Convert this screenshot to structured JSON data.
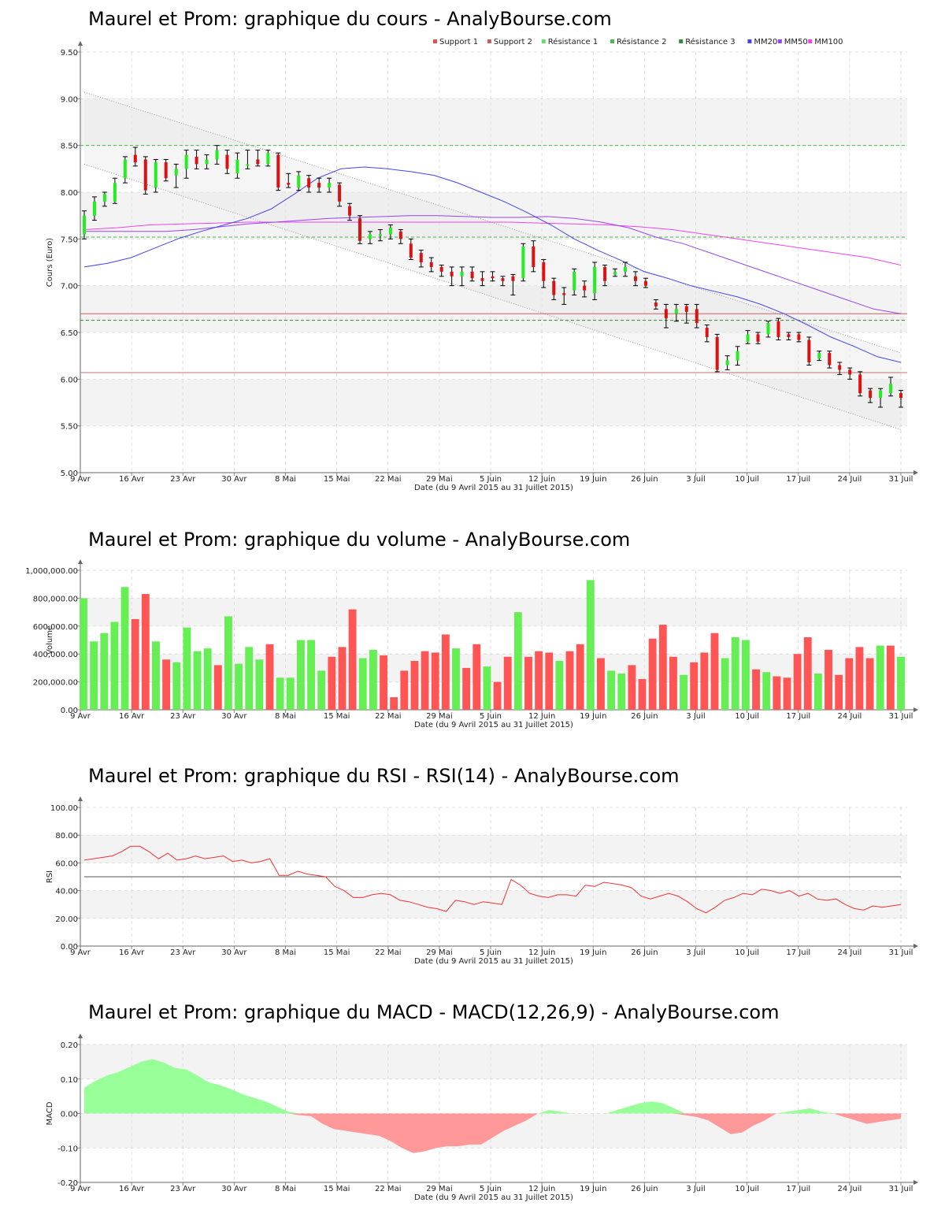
{
  "chart_data": [
    {
      "type": "candlestick",
      "title": "Maurel et Prom: graphique du cours - AnalyBourse.com",
      "xlabel": "Date (du 9 Avril 2015 au 31 Juillet 2015)",
      "ylabel": "Cours (Euro)",
      "ylim": [
        5.0,
        9.5
      ],
      "yticks": [
        "5.00",
        "5.50",
        "6.00",
        "6.50",
        "7.00",
        "7.50",
        "8.00",
        "8.50",
        "9.00",
        "9.50"
      ],
      "xticks": [
        "9 Avr",
        "16 Avr",
        "23 Avr",
        "30 Avr",
        "8 Mai",
        "15 Mai",
        "22 Mai",
        "29 Mai",
        "5 Juin",
        "12 Juin",
        "19 Juin",
        "26 Juin",
        "3 Juil",
        "10 Juil",
        "17 Juil",
        "24 Juil",
        "31 Juil"
      ],
      "legend": [
        {
          "name": "Support 1",
          "color": "#e05050"
        },
        {
          "name": "Support 2",
          "color": "#c06060"
        },
        {
          "name": "Résistance 1",
          "color": "#66dd66"
        },
        {
          "name": "Résistance 2",
          "color": "#44bb44"
        },
        {
          "name": "Résistance 3",
          "color": "#338833"
        },
        {
          "name": "MM20",
          "color": "#4444ee"
        },
        {
          "name": "MM50",
          "color": "#9944ee"
        },
        {
          "name": "MM100",
          "color": "#ee44ee"
        }
      ],
      "legend_position": "top-right",
      "grid": true,
      "levels": {
        "support1": 6.7,
        "support2": 6.07,
        "resistance1": 8.5,
        "resistance2": 7.52,
        "resistance3": 6.63
      },
      "candles": [
        [
          7.55,
          7.75,
          7.8,
          7.5
        ],
        [
          7.75,
          7.9,
          7.95,
          7.7
        ],
        [
          7.9,
          7.98,
          8.0,
          7.85
        ],
        [
          7.9,
          8.1,
          8.15,
          7.88
        ],
        [
          8.15,
          8.35,
          8.38,
          8.1
        ],
        [
          8.4,
          8.32,
          8.48,
          8.28
        ],
        [
          8.35,
          8.02,
          8.38,
          7.98
        ],
        [
          8.05,
          8.32,
          8.35,
          8.0
        ],
        [
          8.32,
          8.15,
          8.35,
          8.12
        ],
        [
          8.18,
          8.25,
          8.3,
          8.05
        ],
        [
          8.25,
          8.4,
          8.45,
          8.15
        ],
        [
          8.38,
          8.3,
          8.45,
          8.25
        ],
        [
          8.3,
          8.35,
          8.4,
          8.25
        ],
        [
          8.35,
          8.45,
          8.5,
          8.3
        ],
        [
          8.4,
          8.25,
          8.45,
          8.2
        ],
        [
          8.2,
          8.35,
          8.42,
          8.15
        ],
        [
          8.3,
          8.3,
          8.45,
          8.25
        ],
        [
          8.35,
          8.3,
          8.45,
          8.28
        ],
        [
          8.3,
          8.42,
          8.45,
          8.28
        ],
        [
          8.4,
          8.05,
          8.42,
          8.02
        ],
        [
          8.1,
          8.08,
          8.2,
          8.05
        ],
        [
          8.05,
          8.18,
          8.22,
          8.02
        ],
        [
          8.15,
          8.05,
          8.18,
          8.0
        ],
        [
          8.1,
          8.05,
          8.15,
          8.0
        ],
        [
          8.05,
          8.1,
          8.15,
          8.0
        ],
        [
          8.08,
          7.9,
          8.1,
          7.85
        ],
        [
          7.85,
          7.75,
          7.88,
          7.7
        ],
        [
          7.72,
          7.48,
          7.75,
          7.45
        ],
        [
          7.5,
          7.55,
          7.58,
          7.45
        ],
        [
          7.55,
          7.55,
          7.6,
          7.48
        ],
        [
          7.55,
          7.62,
          7.65,
          7.5
        ],
        [
          7.58,
          7.5,
          7.6,
          7.45
        ],
        [
          7.45,
          7.3,
          7.5,
          7.28
        ],
        [
          7.35,
          7.25,
          7.38,
          7.2
        ],
        [
          7.25,
          7.2,
          7.3,
          7.15
        ],
        [
          7.2,
          7.15,
          7.22,
          7.1
        ],
        [
          7.15,
          7.1,
          7.2,
          7.0
        ],
        [
          7.1,
          7.15,
          7.2,
          7.0
        ],
        [
          7.15,
          7.08,
          7.2,
          7.05
        ],
        [
          7.08,
          7.05,
          7.15,
          7.0
        ],
        [
          7.1,
          7.08,
          7.15,
          7.05
        ],
        [
          7.08,
          7.05,
          7.1,
          7.0
        ],
        [
          7.1,
          7.05,
          7.12,
          6.9
        ],
        [
          7.08,
          7.42,
          7.45,
          7.05
        ],
        [
          7.42,
          7.2,
          7.48,
          7.15
        ],
        [
          7.25,
          7.05,
          7.28,
          6.98
        ],
        [
          7.05,
          6.9,
          7.08,
          6.85
        ],
        [
          6.92,
          6.9,
          6.98,
          6.8
        ],
        [
          6.95,
          7.15,
          7.18,
          6.9
        ],
        [
          7.0,
          6.95,
          7.05,
          6.88
        ],
        [
          6.92,
          7.2,
          7.25,
          6.85
        ],
        [
          7.2,
          7.05,
          7.22,
          7.0
        ],
        [
          7.12,
          7.15,
          7.18,
          7.1
        ],
        [
          7.15,
          7.2,
          7.25,
          7.1
        ],
        [
          7.1,
          7.05,
          7.15,
          7.0
        ],
        [
          7.05,
          7.0,
          7.08,
          6.98
        ],
        [
          6.82,
          6.78,
          6.85,
          6.75
        ],
        [
          6.75,
          6.65,
          6.8,
          6.55
        ],
        [
          6.7,
          6.75,
          6.8,
          6.62
        ],
        [
          6.78,
          6.72,
          6.8,
          6.6
        ],
        [
          6.75,
          6.6,
          6.8,
          6.55
        ],
        [
          6.55,
          6.45,
          6.58,
          6.4
        ],
        [
          6.45,
          6.1,
          6.48,
          6.08
        ],
        [
          6.15,
          6.2,
          6.25,
          6.1
        ],
        [
          6.2,
          6.3,
          6.35,
          6.15
        ],
        [
          6.4,
          6.48,
          6.52,
          6.38
        ],
        [
          6.48,
          6.4,
          6.5,
          6.38
        ],
        [
          6.48,
          6.6,
          6.62,
          6.45
        ],
        [
          6.62,
          6.45,
          6.65,
          6.42
        ],
        [
          6.48,
          6.45,
          6.5,
          6.42
        ],
        [
          6.48,
          6.42,
          6.5,
          6.4
        ],
        [
          6.42,
          6.18,
          6.45,
          6.15
        ],
        [
          6.22,
          6.28,
          6.3,
          6.2
        ],
        [
          6.28,
          6.15,
          6.3,
          6.12
        ],
        [
          6.15,
          6.1,
          6.18,
          6.05
        ],
        [
          6.1,
          6.05,
          6.12,
          6.0
        ],
        [
          6.05,
          5.85,
          6.08,
          5.82
        ],
        [
          5.88,
          5.8,
          5.9,
          5.75
        ],
        [
          5.8,
          5.88,
          5.9,
          5.7
        ],
        [
          5.85,
          5.95,
          6.02,
          5.82
        ],
        [
          5.85,
          5.8,
          5.88,
          5.7
        ]
      ],
      "mm20": [
        7.2,
        7.24,
        7.3,
        7.4,
        7.5,
        7.58,
        7.65,
        7.72,
        7.82,
        7.98,
        8.15,
        8.25,
        8.27,
        8.25,
        8.22,
        8.18,
        8.1,
        8.0,
        7.9,
        7.78,
        7.65,
        7.5,
        7.38,
        7.27,
        7.15,
        7.08,
        7.0,
        6.94,
        6.88,
        6.8,
        6.7,
        6.58,
        6.45,
        6.35,
        6.24,
        6.18
      ],
      "mm50": [
        7.58,
        7.58,
        7.58,
        7.58,
        7.6,
        7.63,
        7.66,
        7.68,
        7.7,
        7.72,
        7.73,
        7.74,
        7.75,
        7.75,
        7.74,
        7.73,
        7.73,
        7.74,
        7.72,
        7.68,
        7.62,
        7.52,
        7.45,
        7.35,
        7.25,
        7.15,
        7.05,
        6.95,
        6.85,
        6.75,
        6.7
      ],
      "mm100": [
        7.6,
        7.62,
        7.65,
        7.66,
        7.67,
        7.68,
        7.68,
        7.68,
        7.68,
        7.68,
        7.68,
        7.68,
        7.68,
        7.68,
        7.67,
        7.66,
        7.65,
        7.63,
        7.6,
        7.55,
        7.5,
        7.45,
        7.4,
        7.35,
        7.3,
        7.22
      ],
      "channel_upper": [
        9.07,
        6.28
      ],
      "channel_lower": [
        8.3,
        5.46
      ]
    },
    {
      "type": "bar",
      "title": "Maurel et Prom: graphique du volume - AnalyBourse.com",
      "xlabel": "Date (du 9 Avril 2015 au 31 Juillet 2015)",
      "ylabel": "Volume",
      "ylim": [
        0,
        1000000
      ],
      "yticks": [
        "0.00",
        "200,000.00",
        "400,000.00",
        "600,000.00",
        "800,000.00",
        "1,000,000.00"
      ],
      "xticks": [
        "9 Avr",
        "16 Avr",
        "23 Avr",
        "30 Avr",
        "8 Mai",
        "15 Mai",
        "22 Mai",
        "29 Mai",
        "5 Juin",
        "12 Juin",
        "19 Juin",
        "26 Juin",
        "3 Juil",
        "10 Juil",
        "17 Juil",
        "24 Juil",
        "31 Juil"
      ],
      "up_color": "#66ee55",
      "down_color": "#ff5555",
      "values": [
        800000,
        490000,
        550000,
        630000,
        880000,
        650000,
        830000,
        490000,
        360000,
        340000,
        590000,
        420000,
        440000,
        320000,
        670000,
        330000,
        450000,
        360000,
        470000,
        230000,
        230000,
        500000,
        500000,
        280000,
        380000,
        450000,
        720000,
        370000,
        430000,
        390000,
        90000,
        280000,
        350000,
        420000,
        410000,
        540000,
        440000,
        300000,
        470000,
        310000,
        200000,
        380000,
        700000,
        380000,
        420000,
        410000,
        350000,
        420000,
        470000,
        930000,
        370000,
        280000,
        260000,
        320000,
        220000,
        510000,
        610000,
        380000,
        250000,
        340000,
        410000,
        550000,
        370000,
        520000,
        500000,
        290000,
        270000,
        240000,
        230000,
        400000,
        520000,
        260000,
        430000,
        250000,
        370000,
        450000,
        370000,
        460000,
        460000,
        380000
      ],
      "up": [
        1,
        1,
        1,
        1,
        1,
        0,
        0,
        1,
        0,
        1,
        1,
        1,
        1,
        0,
        1,
        1,
        1,
        1,
        0,
        1,
        1,
        1,
        1,
        1,
        0,
        0,
        0,
        1,
        1,
        0,
        0,
        0,
        0,
        0,
        0,
        0,
        1,
        0,
        0,
        1,
        0,
        0,
        1,
        0,
        0,
        0,
        1,
        0,
        0,
        1,
        0,
        1,
        1,
        0,
        0,
        0,
        0,
        0,
        1,
        0,
        0,
        0,
        1,
        1,
        1,
        0,
        1,
        0,
        0,
        0,
        0,
        1,
        0,
        0,
        0,
        0,
        0,
        1,
        0,
        1
      ]
    },
    {
      "type": "line",
      "title": "Maurel et Prom: graphique du RSI - RSI(14) - AnalyBourse.com",
      "xlabel": "Date (du 9 Avril 2015 au 31 Juillet 2015)",
      "ylabel": "RSI",
      "ylim": [
        0,
        100
      ],
      "yticks": [
        "0.00",
        "20.00",
        "40.00",
        "60.00",
        "80.00",
        "100.00"
      ],
      "xticks": [
        "9 Avr",
        "16 Avr",
        "23 Avr",
        "30 Avr",
        "8 Mai",
        "15 Mai",
        "22 Mai",
        "29 Mai",
        "5 Juin",
        "12 Juin",
        "19 Juin",
        "26 Juin",
        "3 Juil",
        "10 Juil",
        "17 Juil",
        "24 Juil",
        "31 Juil"
      ],
      "reference_line": 50,
      "color": "#ee3333",
      "values": [
        62,
        63,
        64,
        65,
        68,
        72,
        72,
        68,
        63,
        67,
        62,
        63,
        65,
        63,
        64,
        65,
        61,
        62,
        60,
        61,
        63,
        51,
        51,
        54,
        52,
        51,
        50,
        43,
        40,
        35,
        35,
        37,
        38,
        37,
        33,
        32,
        30,
        28,
        27,
        25,
        33,
        32,
        30,
        32,
        31,
        30,
        48,
        44,
        38,
        36,
        35,
        37,
        37,
        36,
        44,
        43,
        46,
        45,
        44,
        42,
        36,
        34,
        36,
        38,
        36,
        32,
        27,
        24,
        28,
        33,
        35,
        38,
        37,
        41,
        40,
        38,
        40,
        36,
        38,
        34,
        33,
        34,
        30,
        27,
        26,
        29,
        28,
        29,
        30
      ]
    },
    {
      "type": "area",
      "title": "Maurel et Prom: graphique du MACD - MACD(12,26,9) - AnalyBourse.com",
      "xlabel": "Date (du 9 Avril 2015 au 31 Juillet 2015)",
      "ylabel": "MACD",
      "ylim": [
        -0.2,
        0.2
      ],
      "yticks": [
        "-0.20",
        "-0.10",
        "0.00",
        "0.10",
        "0.20"
      ],
      "xticks": [
        "9 Avr",
        "16 Avr",
        "23 Avr",
        "30 Avr",
        "8 Mai",
        "15 Mai",
        "22 Mai",
        "29 Mai",
        "5 Juin",
        "12 Juin",
        "19 Juin",
        "26 Juin",
        "3 Juil",
        "10 Juil",
        "17 Juil",
        "24 Juil",
        "31 Juil"
      ],
      "positive_color": "#99ff99",
      "negative_color": "#ff9999",
      "values": [
        0.075,
        0.095,
        0.11,
        0.12,
        0.135,
        0.15,
        0.158,
        0.148,
        0.132,
        0.128,
        0.11,
        0.09,
        0.082,
        0.07,
        0.055,
        0.045,
        0.035,
        0.02,
        0.005,
        -0.005,
        -0.008,
        -0.03,
        -0.045,
        -0.05,
        -0.055,
        -0.06,
        -0.065,
        -0.08,
        -0.1,
        -0.115,
        -0.11,
        -0.1,
        -0.095,
        -0.095,
        -0.09,
        -0.09,
        -0.07,
        -0.05,
        -0.035,
        -0.02,
        0.0,
        0.01,
        0.005,
        0.0,
        0.0,
        0.0,
        0.0,
        0.01,
        0.02,
        0.03,
        0.035,
        0.03,
        0.015,
        -0.005,
        -0.01,
        -0.02,
        -0.04,
        -0.06,
        -0.055,
        -0.035,
        -0.02,
        0.0,
        0.005,
        0.01,
        0.015,
        0.005,
        0.0,
        -0.01,
        -0.02,
        -0.03,
        -0.025,
        -0.02,
        -0.015
      ]
    }
  ]
}
